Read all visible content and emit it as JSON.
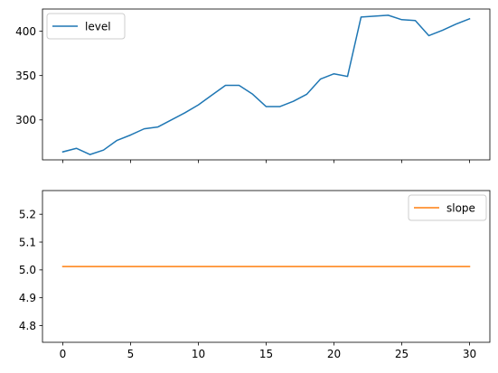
{
  "chart_data": [
    {
      "type": "line",
      "x": [
        0,
        1,
        2,
        3,
        4,
        5,
        6,
        7,
        8,
        9,
        10,
        11,
        12,
        13,
        14,
        15,
        16,
        17,
        18,
        19,
        20,
        21,
        22,
        23,
        24,
        25,
        26,
        27,
        28,
        29,
        30
      ],
      "series": [
        {
          "name": "level",
          "color": "#1f77b4",
          "values": [
            264,
            268,
            261,
            266,
            277,
            283,
            290,
            292,
            300,
            308,
            317,
            328,
            339,
            339,
            329,
            315,
            315,
            321,
            329,
            346,
            352,
            349,
            416,
            417,
            418,
            413,
            412,
            395,
            401,
            408,
            414
          ]
        }
      ],
      "xlim": [
        -1.5,
        31.5
      ],
      "ylim": [
        255,
        425
      ],
      "xticks": [
        0,
        5,
        10,
        15,
        20,
        25,
        30
      ],
      "xtick_labels_shown": false,
      "yticks": [
        300,
        350,
        400
      ],
      "ytick_labels": [
        "300",
        "350",
        "400"
      ],
      "legend": "top-left",
      "grid": false,
      "title": "",
      "xlabel": "",
      "ylabel": ""
    },
    {
      "type": "line",
      "x": [
        0,
        1,
        2,
        3,
        4,
        5,
        6,
        7,
        8,
        9,
        10,
        11,
        12,
        13,
        14,
        15,
        16,
        17,
        18,
        19,
        20,
        21,
        22,
        23,
        24,
        25,
        26,
        27,
        28,
        29,
        30
      ],
      "series": [
        {
          "name": "slope",
          "color": "#ff7f0e",
          "values": [
            5.012,
            5.012,
            5.012,
            5.012,
            5.012,
            5.012,
            5.012,
            5.012,
            5.012,
            5.012,
            5.012,
            5.012,
            5.012,
            5.012,
            5.012,
            5.012,
            5.012,
            5.012,
            5.012,
            5.012,
            5.012,
            5.012,
            5.012,
            5.012,
            5.012,
            5.012,
            5.012,
            5.012,
            5.012,
            5.012,
            5.012
          ]
        }
      ],
      "xlim": [
        -1.5,
        31.5
      ],
      "ylim": [
        4.74,
        5.285
      ],
      "xticks": [
        0,
        5,
        10,
        15,
        20,
        25,
        30
      ],
      "xtick_labels": [
        "0",
        "5",
        "10",
        "15",
        "20",
        "25",
        "30"
      ],
      "yticks": [
        4.8,
        4.9,
        5.0,
        5.1,
        5.2
      ],
      "ytick_labels": [
        "4.8",
        "4.9",
        "5.0",
        "5.1",
        "5.2"
      ],
      "legend": "top-right",
      "grid": false,
      "title": "",
      "xlabel": "",
      "ylabel": ""
    }
  ]
}
